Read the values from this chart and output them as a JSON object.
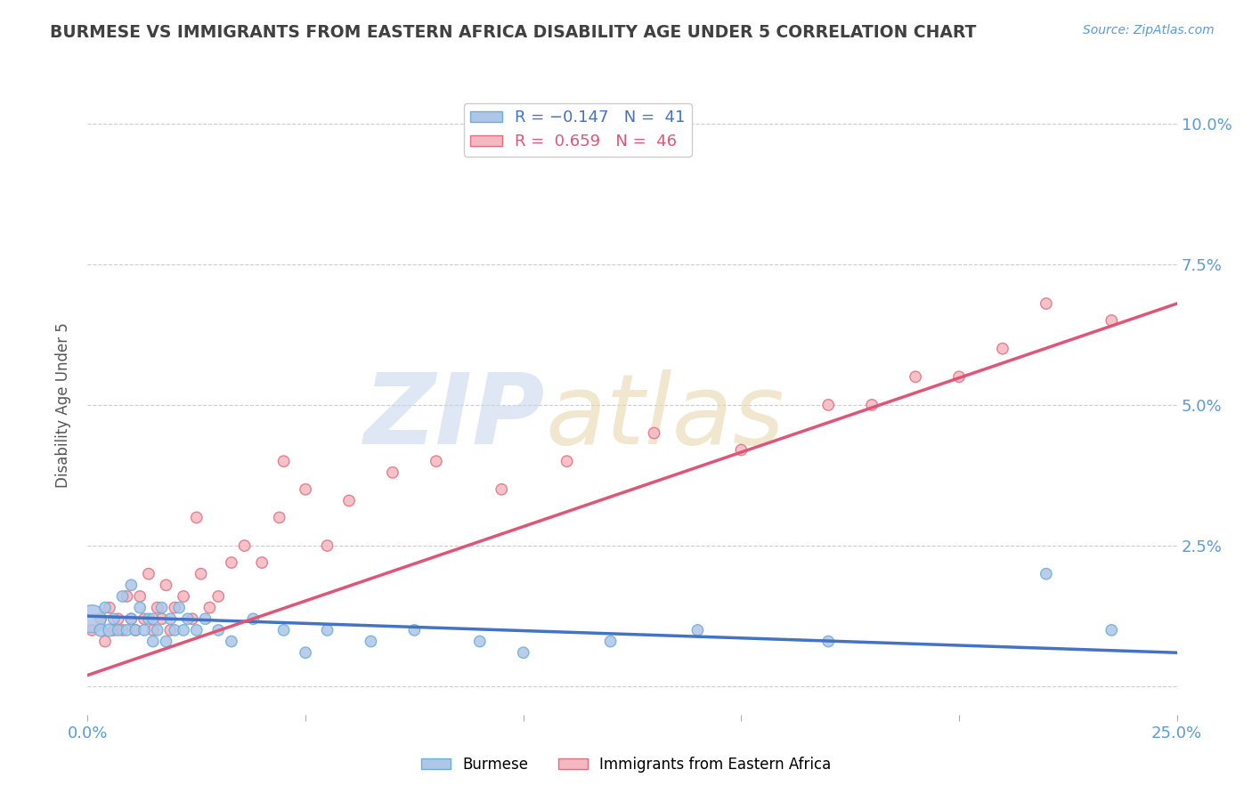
{
  "title": "BURMESE VS IMMIGRANTS FROM EASTERN AFRICA DISABILITY AGE UNDER 5 CORRELATION CHART",
  "source_text": "Source: ZipAtlas.com",
  "ylabel": "Disability Age Under 5",
  "xlim": [
    0.0,
    0.25
  ],
  "ylim": [
    -0.005,
    0.105
  ],
  "xticks": [
    0.0,
    0.05,
    0.1,
    0.15,
    0.2,
    0.25
  ],
  "yticks": [
    0.0,
    0.025,
    0.05,
    0.075,
    0.1
  ],
  "ytick_labels": [
    "",
    "2.5%",
    "5.0%",
    "7.5%",
    "10.0%"
  ],
  "xtick_labels": [
    "0.0%",
    "",
    "",
    "",
    "",
    "25.0%"
  ],
  "burmese_color": "#aec6e8",
  "burmese_edge_color": "#6baed6",
  "eastern_africa_color": "#f4b8c1",
  "eastern_africa_edge_color": "#e07080",
  "blue_line_color": "#4472c4",
  "pink_line_color": "#e05575",
  "title_color": "#404040",
  "axis_label_color": "#5b9bd5",
  "burmese_x": [
    0.001,
    0.003,
    0.004,
    0.005,
    0.006,
    0.007,
    0.008,
    0.009,
    0.01,
    0.01,
    0.011,
    0.012,
    0.013,
    0.014,
    0.015,
    0.015,
    0.016,
    0.017,
    0.018,
    0.019,
    0.02,
    0.021,
    0.022,
    0.023,
    0.025,
    0.027,
    0.03,
    0.033,
    0.038,
    0.045,
    0.05,
    0.055,
    0.065,
    0.075,
    0.09,
    0.1,
    0.12,
    0.14,
    0.17,
    0.22,
    0.235
  ],
  "burmese_y": [
    0.012,
    0.01,
    0.014,
    0.01,
    0.012,
    0.01,
    0.016,
    0.01,
    0.012,
    0.018,
    0.01,
    0.014,
    0.01,
    0.012,
    0.008,
    0.012,
    0.01,
    0.014,
    0.008,
    0.012,
    0.01,
    0.014,
    0.01,
    0.012,
    0.01,
    0.012,
    0.01,
    0.008,
    0.012,
    0.01,
    0.006,
    0.01,
    0.008,
    0.01,
    0.008,
    0.006,
    0.008,
    0.01,
    0.008,
    0.02,
    0.01
  ],
  "burmese_sizes": [
    500,
    100,
    80,
    100,
    80,
    80,
    80,
    80,
    80,
    80,
    80,
    80,
    80,
    80,
    80,
    80,
    80,
    80,
    80,
    80,
    80,
    80,
    80,
    80,
    80,
    80,
    80,
    80,
    80,
    80,
    80,
    80,
    80,
    80,
    80,
    80,
    80,
    80,
    80,
    80,
    80
  ],
  "eastern_africa_x": [
    0.001,
    0.003,
    0.004,
    0.005,
    0.006,
    0.007,
    0.008,
    0.009,
    0.01,
    0.011,
    0.012,
    0.013,
    0.014,
    0.015,
    0.016,
    0.017,
    0.018,
    0.019,
    0.02,
    0.022,
    0.024,
    0.026,
    0.028,
    0.03,
    0.033,
    0.036,
    0.04,
    0.044,
    0.05,
    0.055,
    0.06,
    0.07,
    0.08,
    0.095,
    0.11,
    0.13,
    0.15,
    0.17,
    0.19,
    0.21,
    0.22,
    0.235,
    0.2,
    0.18,
    0.045,
    0.025
  ],
  "eastern_africa_y": [
    0.01,
    0.012,
    0.008,
    0.014,
    0.01,
    0.012,
    0.01,
    0.016,
    0.012,
    0.01,
    0.016,
    0.012,
    0.02,
    0.01,
    0.014,
    0.012,
    0.018,
    0.01,
    0.014,
    0.016,
    0.012,
    0.02,
    0.014,
    0.016,
    0.022,
    0.025,
    0.022,
    0.03,
    0.035,
    0.025,
    0.033,
    0.038,
    0.04,
    0.035,
    0.04,
    0.045,
    0.042,
    0.05,
    0.055,
    0.06,
    0.068,
    0.065,
    0.055,
    0.05,
    0.04,
    0.03
  ],
  "eastern_africa_sizes": [
    80,
    80,
    80,
    80,
    80,
    80,
    80,
    80,
    80,
    80,
    80,
    80,
    80,
    80,
    80,
    80,
    80,
    80,
    80,
    80,
    80,
    80,
    80,
    80,
    80,
    80,
    80,
    80,
    80,
    80,
    80,
    80,
    80,
    80,
    80,
    80,
    80,
    80,
    80,
    80,
    80,
    80,
    80,
    80,
    80,
    80
  ],
  "blue_line_x": [
    0.0,
    0.25
  ],
  "blue_line_y": [
    0.0125,
    0.006
  ],
  "pink_line_x": [
    0.0,
    0.25
  ],
  "pink_line_y": [
    0.002,
    0.068
  ],
  "background_color": "#ffffff",
  "grid_color": "#cccccc",
  "watermark_color_zip": "#c8d8ec",
  "watermark_color_atlas": "#e8d8b0"
}
